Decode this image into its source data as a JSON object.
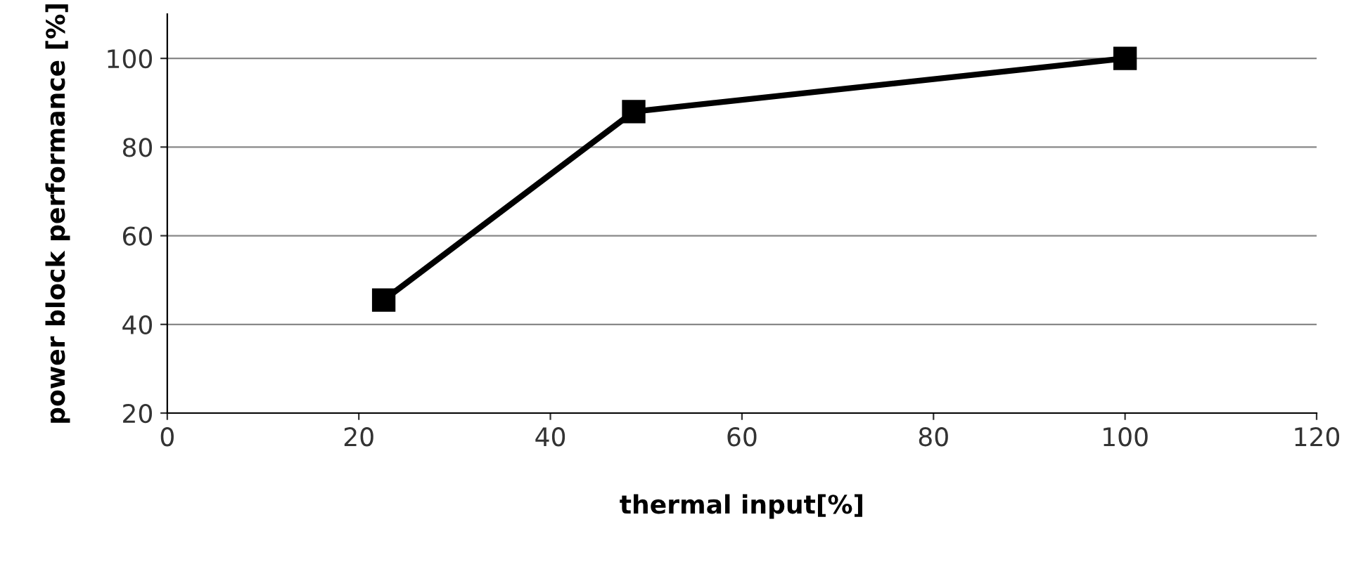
{
  "chart_data": {
    "type": "line",
    "xlabel": "thermal input[%]",
    "ylabel": "power block performance [%]",
    "x": [
      22.6,
      48.7,
      100
    ],
    "series": [
      {
        "color": "#000000",
        "values": [
          45.5,
          88,
          100
        ]
      }
    ],
    "xlim": [
      0,
      120
    ],
    "xticks": [
      0,
      20,
      40,
      60,
      80,
      100,
      120
    ],
    "ylim": [
      20,
      110
    ],
    "yticks": [
      20,
      40,
      60,
      80,
      100
    ],
    "grid": "y",
    "marker": "square",
    "line_style": "solid"
  }
}
